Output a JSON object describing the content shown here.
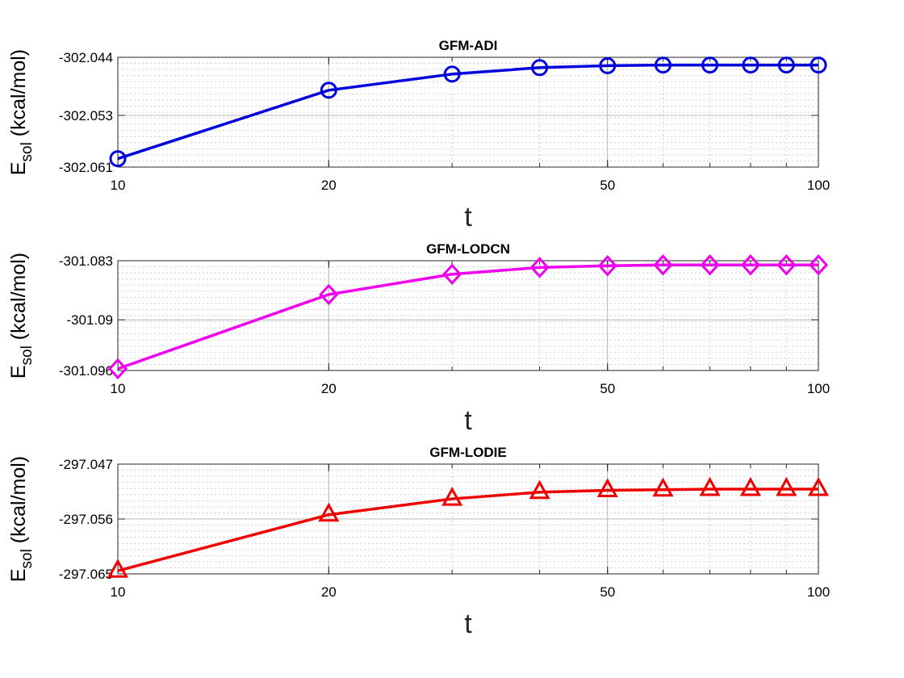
{
  "chart_data": [
    {
      "type": "line",
      "title": "GFM-ADI",
      "xlabel": "t",
      "ylabel_main": "E",
      "ylabel_sub": "sol",
      "ylabel_rest": " (kcal/mol)",
      "xscale": "log",
      "xlim": [
        10,
        100
      ],
      "ylim": [
        -302.061,
        -302.044
      ],
      "xticks": [
        10,
        20,
        50,
        100
      ],
      "xtick_labels": [
        "10",
        "20",
        "50",
        "100"
      ],
      "yticks": [
        -302.044,
        -302.053,
        -302.061
      ],
      "ytick_labels": [
        "-302.044",
        "-302.053",
        "-302.061"
      ],
      "grid": true,
      "minor_grid": true,
      "series": [
        {
          "marker": "circle",
          "color": "#0000dd",
          "x": [
            10,
            20,
            30,
            40,
            50,
            60,
            70,
            80,
            90,
            100
          ],
          "y": [
            -302.0597,
            -302.0491,
            -302.0466,
            -302.0456,
            -302.0453,
            -302.0452,
            -302.0452,
            -302.0452,
            -302.0452,
            -302.0452
          ]
        }
      ]
    },
    {
      "type": "line",
      "title": "GFM-LODCN",
      "xlabel": "t",
      "ylabel_main": "E",
      "ylabel_sub": "sol",
      "ylabel_rest": " (kcal/mol)",
      "xscale": "log",
      "xlim": [
        10,
        100
      ],
      "ylim": [
        -301.096,
        -301.083
      ],
      "xticks": [
        10,
        20,
        50,
        100
      ],
      "xtick_labels": [
        "10",
        "20",
        "50",
        "100"
      ],
      "yticks": [
        -301.083,
        -301.09,
        -301.096
      ],
      "ytick_labels": [
        "-301.083",
        "-301.09",
        "-301.096"
      ],
      "grid": true,
      "minor_grid": true,
      "series": [
        {
          "marker": "diamond",
          "color": "#ee00ee",
          "x": [
            10,
            20,
            30,
            40,
            50,
            60,
            70,
            80,
            90,
            100
          ],
          "y": [
            -301.0958,
            -301.087,
            -301.0846,
            -301.0838,
            -301.0836,
            -301.0835,
            -301.0835,
            -301.0835,
            -301.0835,
            -301.0835
          ]
        }
      ]
    },
    {
      "type": "line",
      "title": "GFM-LODIE",
      "xlabel": "t",
      "ylabel_main": "E",
      "ylabel_sub": "sol",
      "ylabel_rest": " (kcal/mol)",
      "xscale": "log",
      "xlim": [
        10,
        100
      ],
      "ylim": [
        -297.065,
        -297.047
      ],
      "xticks": [
        10,
        20,
        50,
        100
      ],
      "xtick_labels": [
        "10",
        "20",
        "50",
        "100"
      ],
      "yticks": [
        -297.047,
        -297.056,
        -297.065
      ],
      "ytick_labels": [
        "-297.047",
        "-297.056",
        "-297.065"
      ],
      "grid": true,
      "minor_grid": true,
      "series": [
        {
          "marker": "triangle",
          "color": "#ee0000",
          "x": [
            10,
            20,
            30,
            40,
            50,
            60,
            70,
            80,
            90,
            100
          ],
          "y": [
            -297.0645,
            -297.0553,
            -297.0527,
            -297.0516,
            -297.0513,
            -297.0512,
            -297.0511,
            -297.0511,
            -297.0511,
            -297.0511
          ]
        }
      ]
    }
  ]
}
